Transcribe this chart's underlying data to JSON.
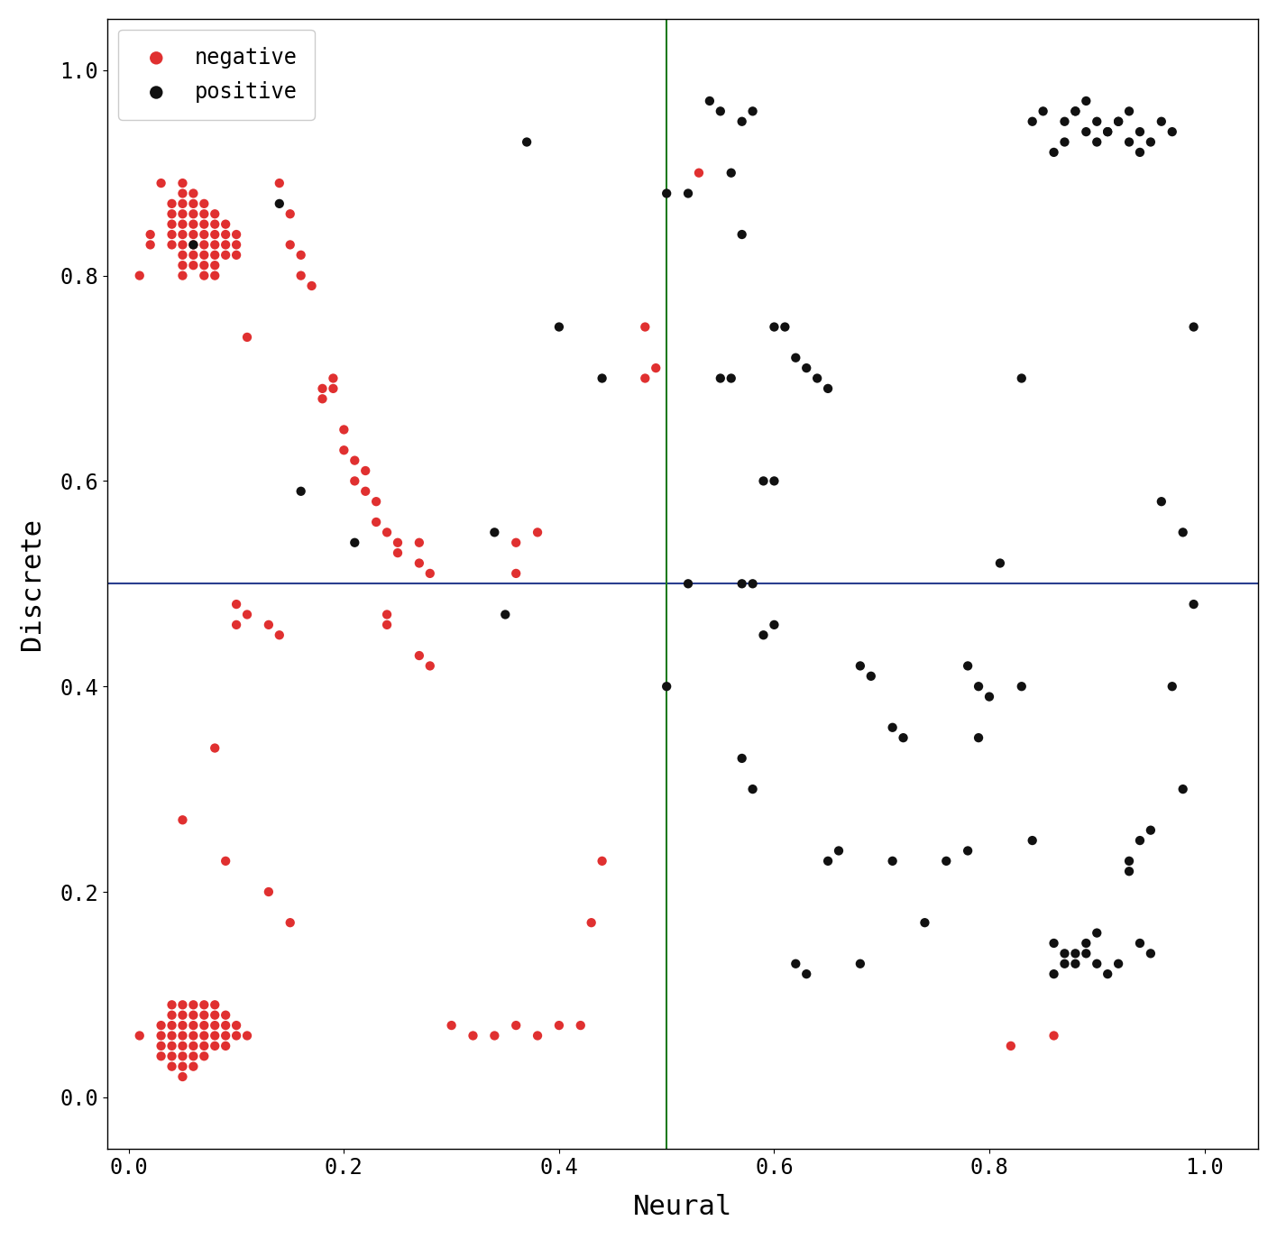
{
  "xlabel": "Neural",
  "ylabel": "Discrete",
  "xlim": [
    -0.02,
    1.05
  ],
  "ylim": [
    -0.05,
    1.05
  ],
  "hline_y": 0.5,
  "vline_x": 0.5,
  "hline_color": "#2a3f8f",
  "vline_color": "#1e7a1e",
  "marker_size": 55,
  "negative_color": "#e03030",
  "positive_color": "#111111",
  "negative_points": [
    [
      0.03,
      0.89
    ],
    [
      0.04,
      0.87
    ],
    [
      0.04,
      0.86
    ],
    [
      0.04,
      0.85
    ],
    [
      0.04,
      0.84
    ],
    [
      0.04,
      0.83
    ],
    [
      0.05,
      0.89
    ],
    [
      0.05,
      0.88
    ],
    [
      0.05,
      0.87
    ],
    [
      0.05,
      0.86
    ],
    [
      0.05,
      0.85
    ],
    [
      0.05,
      0.84
    ],
    [
      0.05,
      0.83
    ],
    [
      0.05,
      0.82
    ],
    [
      0.05,
      0.81
    ],
    [
      0.05,
      0.8
    ],
    [
      0.06,
      0.88
    ],
    [
      0.06,
      0.87
    ],
    [
      0.06,
      0.86
    ],
    [
      0.06,
      0.85
    ],
    [
      0.06,
      0.84
    ],
    [
      0.06,
      0.83
    ],
    [
      0.06,
      0.82
    ],
    [
      0.06,
      0.81
    ],
    [
      0.07,
      0.87
    ],
    [
      0.07,
      0.86
    ],
    [
      0.07,
      0.85
    ],
    [
      0.07,
      0.84
    ],
    [
      0.07,
      0.83
    ],
    [
      0.07,
      0.82
    ],
    [
      0.07,
      0.81
    ],
    [
      0.07,
      0.8
    ],
    [
      0.08,
      0.86
    ],
    [
      0.08,
      0.85
    ],
    [
      0.08,
      0.84
    ],
    [
      0.08,
      0.83
    ],
    [
      0.08,
      0.82
    ],
    [
      0.08,
      0.81
    ],
    [
      0.08,
      0.8
    ],
    [
      0.09,
      0.85
    ],
    [
      0.09,
      0.84
    ],
    [
      0.09,
      0.83
    ],
    [
      0.09,
      0.82
    ],
    [
      0.1,
      0.84
    ],
    [
      0.1,
      0.83
    ],
    [
      0.1,
      0.82
    ],
    [
      0.02,
      0.84
    ],
    [
      0.02,
      0.83
    ],
    [
      0.01,
      0.8
    ],
    [
      0.11,
      0.74
    ],
    [
      0.14,
      0.89
    ],
    [
      0.15,
      0.86
    ],
    [
      0.15,
      0.83
    ],
    [
      0.16,
      0.82
    ],
    [
      0.16,
      0.8
    ],
    [
      0.17,
      0.79
    ],
    [
      0.18,
      0.69
    ],
    [
      0.18,
      0.68
    ],
    [
      0.19,
      0.7
    ],
    [
      0.19,
      0.69
    ],
    [
      0.2,
      0.65
    ],
    [
      0.2,
      0.63
    ],
    [
      0.21,
      0.62
    ],
    [
      0.21,
      0.6
    ],
    [
      0.22,
      0.61
    ],
    [
      0.22,
      0.59
    ],
    [
      0.23,
      0.58
    ],
    [
      0.23,
      0.56
    ],
    [
      0.24,
      0.55
    ],
    [
      0.25,
      0.54
    ],
    [
      0.25,
      0.53
    ],
    [
      0.27,
      0.54
    ],
    [
      0.27,
      0.52
    ],
    [
      0.28,
      0.51
    ],
    [
      0.36,
      0.54
    ],
    [
      0.36,
      0.51
    ],
    [
      0.38,
      0.55
    ],
    [
      0.48,
      0.75
    ],
    [
      0.48,
      0.7
    ],
    [
      0.49,
      0.71
    ],
    [
      0.53,
      0.9
    ],
    [
      0.1,
      0.48
    ],
    [
      0.1,
      0.46
    ],
    [
      0.11,
      0.47
    ],
    [
      0.13,
      0.46
    ],
    [
      0.14,
      0.45
    ],
    [
      0.24,
      0.47
    ],
    [
      0.24,
      0.46
    ],
    [
      0.27,
      0.43
    ],
    [
      0.28,
      0.42
    ],
    [
      0.05,
      0.27
    ],
    [
      0.08,
      0.34
    ],
    [
      0.09,
      0.23
    ],
    [
      0.13,
      0.2
    ],
    [
      0.15,
      0.17
    ],
    [
      0.03,
      0.07
    ],
    [
      0.03,
      0.06
    ],
    [
      0.03,
      0.05
    ],
    [
      0.03,
      0.04
    ],
    [
      0.04,
      0.09
    ],
    [
      0.04,
      0.08
    ],
    [
      0.04,
      0.07
    ],
    [
      0.04,
      0.06
    ],
    [
      0.04,
      0.05
    ],
    [
      0.04,
      0.04
    ],
    [
      0.04,
      0.03
    ],
    [
      0.05,
      0.09
    ],
    [
      0.05,
      0.08
    ],
    [
      0.05,
      0.07
    ],
    [
      0.05,
      0.06
    ],
    [
      0.05,
      0.05
    ],
    [
      0.05,
      0.04
    ],
    [
      0.05,
      0.03
    ],
    [
      0.05,
      0.02
    ],
    [
      0.06,
      0.09
    ],
    [
      0.06,
      0.08
    ],
    [
      0.06,
      0.07
    ],
    [
      0.06,
      0.06
    ],
    [
      0.06,
      0.05
    ],
    [
      0.06,
      0.04
    ],
    [
      0.06,
      0.03
    ],
    [
      0.07,
      0.09
    ],
    [
      0.07,
      0.08
    ],
    [
      0.07,
      0.07
    ],
    [
      0.07,
      0.06
    ],
    [
      0.07,
      0.05
    ],
    [
      0.07,
      0.04
    ],
    [
      0.08,
      0.09
    ],
    [
      0.08,
      0.08
    ],
    [
      0.08,
      0.07
    ],
    [
      0.08,
      0.06
    ],
    [
      0.08,
      0.05
    ],
    [
      0.09,
      0.08
    ],
    [
      0.09,
      0.07
    ],
    [
      0.09,
      0.06
    ],
    [
      0.09,
      0.05
    ],
    [
      0.1,
      0.07
    ],
    [
      0.1,
      0.06
    ],
    [
      0.11,
      0.06
    ],
    [
      0.01,
      0.06
    ],
    [
      0.3,
      0.07
    ],
    [
      0.32,
      0.06
    ],
    [
      0.34,
      0.06
    ],
    [
      0.36,
      0.07
    ],
    [
      0.38,
      0.06
    ],
    [
      0.4,
      0.07
    ],
    [
      0.42,
      0.07
    ],
    [
      0.43,
      0.17
    ],
    [
      0.44,
      0.23
    ],
    [
      0.82,
      0.05
    ],
    [
      0.86,
      0.06
    ]
  ],
  "positive_points": [
    [
      0.06,
      0.83
    ],
    [
      0.14,
      0.87
    ],
    [
      0.16,
      0.59
    ],
    [
      0.21,
      0.54
    ],
    [
      0.34,
      0.55
    ],
    [
      0.35,
      0.47
    ],
    [
      0.37,
      0.93
    ],
    [
      0.4,
      0.75
    ],
    [
      0.44,
      0.7
    ],
    [
      0.5,
      0.88
    ],
    [
      0.5,
      0.4
    ],
    [
      0.52,
      0.5
    ],
    [
      0.52,
      0.88
    ],
    [
      0.54,
      0.97
    ],
    [
      0.55,
      0.96
    ],
    [
      0.57,
      0.95
    ],
    [
      0.58,
      0.96
    ],
    [
      0.56,
      0.9
    ],
    [
      0.57,
      0.84
    ],
    [
      0.55,
      0.7
    ],
    [
      0.56,
      0.7
    ],
    [
      0.57,
      0.5
    ],
    [
      0.58,
      0.5
    ],
    [
      0.59,
      0.6
    ],
    [
      0.6,
      0.6
    ],
    [
      0.59,
      0.45
    ],
    [
      0.6,
      0.46
    ],
    [
      0.57,
      0.33
    ],
    [
      0.58,
      0.3
    ],
    [
      0.6,
      0.75
    ],
    [
      0.61,
      0.75
    ],
    [
      0.62,
      0.72
    ],
    [
      0.63,
      0.71
    ],
    [
      0.64,
      0.7
    ],
    [
      0.65,
      0.69
    ],
    [
      0.62,
      0.13
    ],
    [
      0.63,
      0.12
    ],
    [
      0.65,
      0.23
    ],
    [
      0.66,
      0.24
    ],
    [
      0.68,
      0.42
    ],
    [
      0.69,
      0.41
    ],
    [
      0.71,
      0.36
    ],
    [
      0.72,
      0.35
    ],
    [
      0.74,
      0.17
    ],
    [
      0.76,
      0.23
    ],
    [
      0.78,
      0.24
    ],
    [
      0.79,
      0.4
    ],
    [
      0.8,
      0.39
    ],
    [
      0.81,
      0.52
    ],
    [
      0.83,
      0.7
    ],
    [
      0.84,
      0.95
    ],
    [
      0.85,
      0.96
    ],
    [
      0.86,
      0.92
    ],
    [
      0.87,
      0.93
    ],
    [
      0.87,
      0.95
    ],
    [
      0.88,
      0.96
    ],
    [
      0.88,
      0.96
    ],
    [
      0.89,
      0.97
    ],
    [
      0.89,
      0.94
    ],
    [
      0.9,
      0.95
    ],
    [
      0.9,
      0.93
    ],
    [
      0.91,
      0.94
    ],
    [
      0.91,
      0.94
    ],
    [
      0.92,
      0.95
    ],
    [
      0.92,
      0.95
    ],
    [
      0.93,
      0.96
    ],
    [
      0.93,
      0.93
    ],
    [
      0.94,
      0.94
    ],
    [
      0.94,
      0.92
    ],
    [
      0.95,
      0.93
    ],
    [
      0.96,
      0.95
    ],
    [
      0.97,
      0.94
    ],
    [
      0.98,
      0.55
    ],
    [
      0.99,
      0.48
    ],
    [
      0.97,
      0.4
    ],
    [
      0.98,
      0.3
    ],
    [
      0.99,
      0.75
    ],
    [
      0.96,
      0.58
    ],
    [
      0.83,
      0.4
    ],
    [
      0.84,
      0.25
    ],
    [
      0.86,
      0.15
    ],
    [
      0.86,
      0.12
    ],
    [
      0.87,
      0.14
    ],
    [
      0.87,
      0.13
    ],
    [
      0.88,
      0.14
    ],
    [
      0.88,
      0.13
    ],
    [
      0.89,
      0.15
    ],
    [
      0.89,
      0.14
    ],
    [
      0.9,
      0.16
    ],
    [
      0.9,
      0.13
    ],
    [
      0.91,
      0.12
    ],
    [
      0.92,
      0.13
    ],
    [
      0.93,
      0.22
    ],
    [
      0.93,
      0.23
    ],
    [
      0.94,
      0.25
    ],
    [
      0.94,
      0.15
    ],
    [
      0.95,
      0.26
    ],
    [
      0.95,
      0.14
    ],
    [
      0.78,
      0.42
    ],
    [
      0.79,
      0.35
    ],
    [
      0.71,
      0.23
    ],
    [
      0.68,
      0.13
    ]
  ],
  "figsize": [
    14.16,
    13.74
  ],
  "dpi": 100
}
